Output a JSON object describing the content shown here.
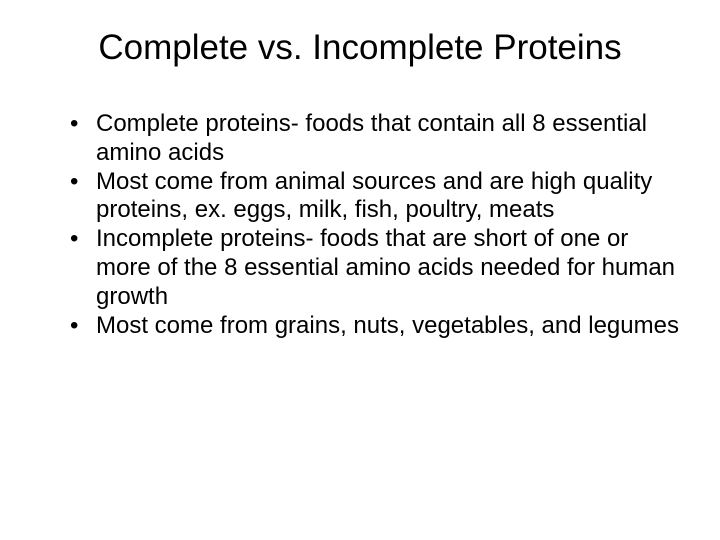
{
  "slide": {
    "title": "Complete vs. Incomplete Proteins",
    "title_fontsize": 35,
    "title_color": "#000000",
    "bullets": [
      "Complete proteins- foods that contain all 8 essential amino acids",
      "Most come from animal sources and are high quality proteins, ex. eggs, milk, fish, poultry, meats",
      "Incomplete proteins- foods that are short of one or more of the 8 essential amino acids needed for human growth",
      "Most come from grains, nuts, vegetables, and legumes"
    ],
    "bullet_fontsize": 24,
    "bullet_color": "#000000",
    "background_color": "#ffffff",
    "font_family": "Arial"
  }
}
